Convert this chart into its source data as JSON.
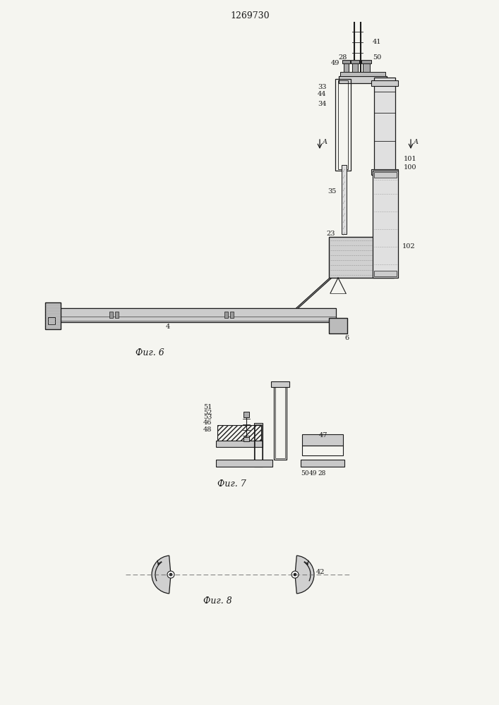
{
  "title": "1269730",
  "background_color": "#f5f5f0",
  "line_color": "#1a1a1a",
  "fig6_label": "Фиг. 6",
  "fig7_label": "Фиг. 7",
  "fig8_label": "Фиг. 8"
}
